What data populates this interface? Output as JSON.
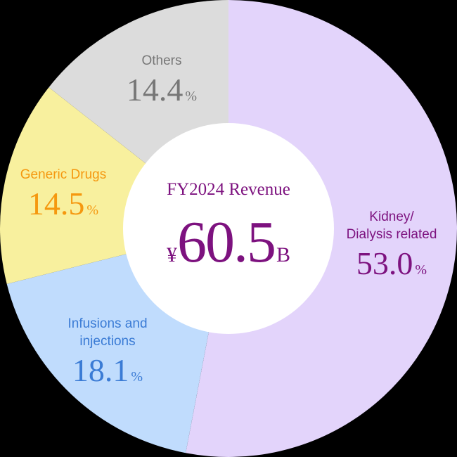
{
  "chart_data": {
    "type": "pie",
    "variant": "donut",
    "title": "FY2024 Revenue",
    "center_value": {
      "currency": "¥",
      "number": "60.5",
      "unit": "B"
    },
    "categories": [
      "Kidney/ Dialysis related",
      "Infusions and injections",
      "Generic Drugs",
      "Others"
    ],
    "values": [
      53.0,
      18.1,
      14.5,
      14.4
    ],
    "unit": "%",
    "colors": [
      "#e3d4fb",
      "#c0dcfd",
      "#f8f09e",
      "#dcdcdc"
    ],
    "label_colors": [
      "#7d127f",
      "#3a7bd5",
      "#f5980f",
      "#777777"
    ],
    "start_angle_deg": 0,
    "direction": "clockwise",
    "legend": "inline labels"
  },
  "labels": {
    "kidney": {
      "line1": "Kidney/",
      "line2": "Dialysis related",
      "value": "53.0",
      "pct": "%"
    },
    "infusions": {
      "line1": "Infusions and",
      "line2": "injections",
      "value": "18.1",
      "pct": "%"
    },
    "generic": {
      "line1": "Generic Drugs",
      "value": "14.5",
      "pct": "%"
    },
    "others": {
      "line1": "Others",
      "value": "14.4",
      "pct": "%"
    }
  },
  "center": {
    "title": "FY2024 Revenue",
    "yen": "¥",
    "number": "60.5",
    "unit": "B"
  }
}
